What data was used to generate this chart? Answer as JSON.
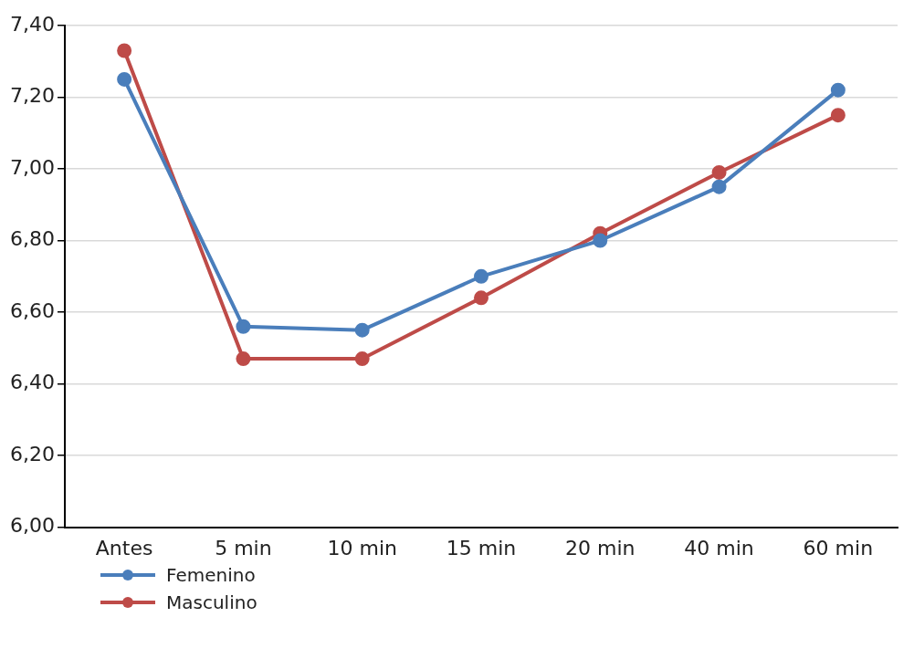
{
  "chart_data": {
    "type": "line",
    "categories": [
      "Antes",
      "5 min",
      "10 min",
      "15 min",
      "20 min",
      "40 min",
      "60 min"
    ],
    "series": [
      {
        "name": "Femenino",
        "color": "#4a7ebb",
        "values": [
          7.25,
          6.56,
          6.55,
          6.7,
          6.8,
          6.95,
          7.22
        ]
      },
      {
        "name": "Masculino",
        "color": "#be4b48",
        "values": [
          7.33,
          6.47,
          6.47,
          6.64,
          6.82,
          6.99,
          7.15
        ]
      }
    ],
    "ylim": [
      6.0,
      7.4
    ],
    "yticks": [
      {
        "value": 6.0,
        "label": "6,00"
      },
      {
        "value": 6.2,
        "label": "6,20"
      },
      {
        "value": 6.4,
        "label": "6,40"
      },
      {
        "value": 6.6,
        "label": "6,60"
      },
      {
        "value": 6.8,
        "label": "6,80"
      },
      {
        "value": 7.0,
        "label": "7,00"
      },
      {
        "value": 7.2,
        "label": "7,20"
      },
      {
        "value": 7.4,
        "label": "7,40"
      }
    ],
    "grid": "y",
    "legend": "bottom left",
    "marker": "circle",
    "line_style": "solid"
  }
}
